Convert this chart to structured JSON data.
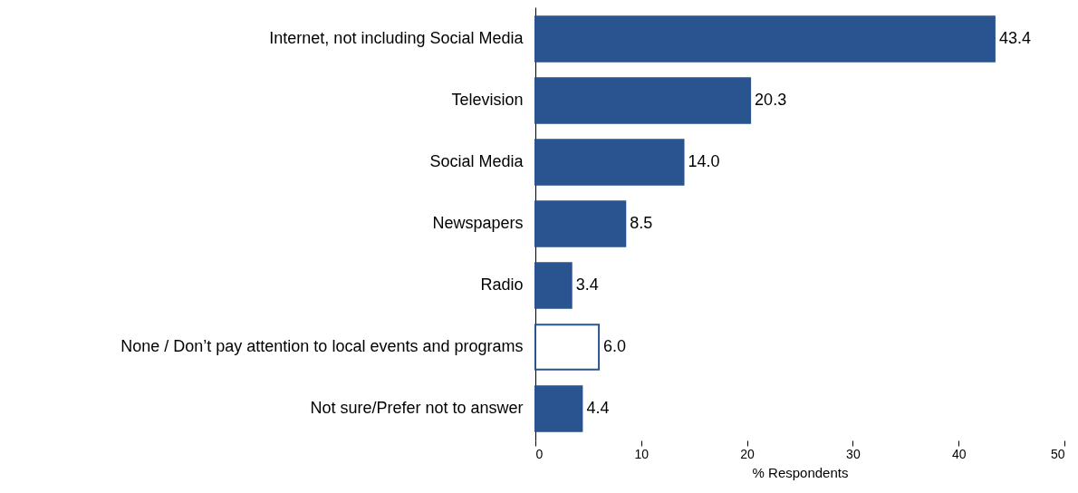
{
  "chart_data": {
    "type": "bar",
    "orientation": "horizontal",
    "xlabel": "% Respondents",
    "categories": [
      "Internet, not including Social Media",
      "Television",
      "Social Media",
      "Newspapers",
      "Radio",
      "None / Don’t pay attention to local events and programs",
      "Not sure/Prefer not to answer"
    ],
    "values": [
      43.4,
      20.3,
      14.0,
      8.5,
      3.4,
      6.0,
      4.4
    ],
    "value_labels": [
      "43.4",
      "20.3",
      "14.0",
      "8.5",
      "3.4",
      "6.0",
      "4.4"
    ],
    "colors": [
      "#2a5490",
      "#2a5490",
      "#2a5490",
      "#2a5490",
      "#2a5490",
      "#ffffff",
      "#2a5490"
    ],
    "xlim": [
      0,
      50
    ],
    "xticks": [
      0,
      10,
      20,
      30,
      40,
      50
    ],
    "grid": false
  }
}
